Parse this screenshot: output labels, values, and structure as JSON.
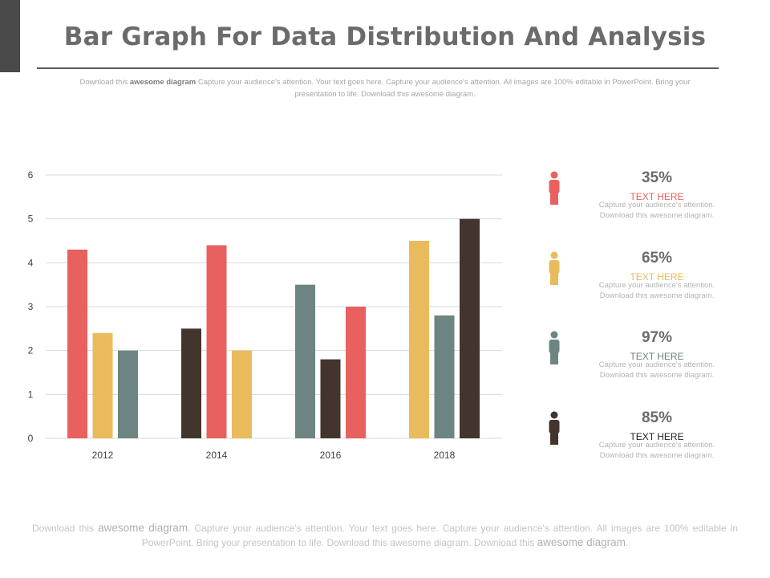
{
  "slide": {
    "title": "Bar Graph For Data Distribution And Analysis",
    "top_desc": {
      "pre": "Download this ",
      "bold": "awesome diagram",
      "post": " Capture your audience's attention. Your text goes here. Capture your audience's attention. All images are 100% editable in PowerPoint. Bring your presentation to life. Download this awesome diagram."
    },
    "bottom_desc": {
      "p1": "Download this ",
      "b1": "awesome diagram",
      "p2": ". Capture your audience's attention. Your text goes here. Capture your audience's attention. All images are 100% editable in PowerPoint. Bring your presentation to life. Download this awesome diagram. Download this ",
      "b2": "awesome diagram",
      "p3": "."
    }
  },
  "colors": {
    "red": "#e8615f",
    "yellow": "#e9bb5c",
    "teal": "#6c8582",
    "dark": "#43352d",
    "grid": "#d9d9d9",
    "tick_text": "#404040"
  },
  "chart_data": {
    "type": "bar",
    "categories": [
      "2012",
      "2014",
      "2016",
      "2018"
    ],
    "ylim": [
      0,
      6
    ],
    "yticks": [
      "0",
      "1",
      "2",
      "3",
      "4",
      "5",
      "6"
    ],
    "grid": true,
    "groups": [
      {
        "category": "2012",
        "bars": [
          {
            "value": 4.3,
            "color": "red"
          },
          {
            "value": 2.4,
            "color": "yellow"
          },
          {
            "value": 2.0,
            "color": "teal"
          }
        ]
      },
      {
        "category": "2014",
        "bars": [
          {
            "value": 2.5,
            "color": "dark"
          },
          {
            "value": 4.4,
            "color": "red"
          },
          {
            "value": 2.0,
            "color": "yellow"
          }
        ]
      },
      {
        "category": "2016",
        "bars": [
          {
            "value": 3.5,
            "color": "teal"
          },
          {
            "value": 1.8,
            "color": "dark"
          },
          {
            "value": 3.0,
            "color": "red"
          }
        ]
      },
      {
        "category": "2018",
        "bars": [
          {
            "value": 4.5,
            "color": "yellow"
          },
          {
            "value": 2.8,
            "color": "teal"
          },
          {
            "value": 5.0,
            "color": "dark"
          }
        ]
      }
    ]
  },
  "legend": [
    {
      "percent": "35%",
      "label": "TEXT HERE",
      "color": "red",
      "desc1": "Capture your audience's attention.",
      "desc2": "Download this awesome diagram.",
      "icon": "person-icon"
    },
    {
      "percent": "65%",
      "label": "TEXT HERE",
      "color": "yellow",
      "desc1": "Capture your audience's attention.",
      "desc2": "Download this awesome diagram.",
      "icon": "person-icon"
    },
    {
      "percent": "97%",
      "label": "TEXT HERE",
      "color": "teal",
      "desc1": "Capture your audience's attention.",
      "desc2": "Download this awesome diagram.",
      "icon": "person-icon"
    },
    {
      "percent": "85%",
      "label": "TEXT HERE",
      "color": "dark",
      "desc1": "Capture your audience's attention.",
      "desc2": "Download this awesome diagram.",
      "icon": "person-icon"
    }
  ]
}
